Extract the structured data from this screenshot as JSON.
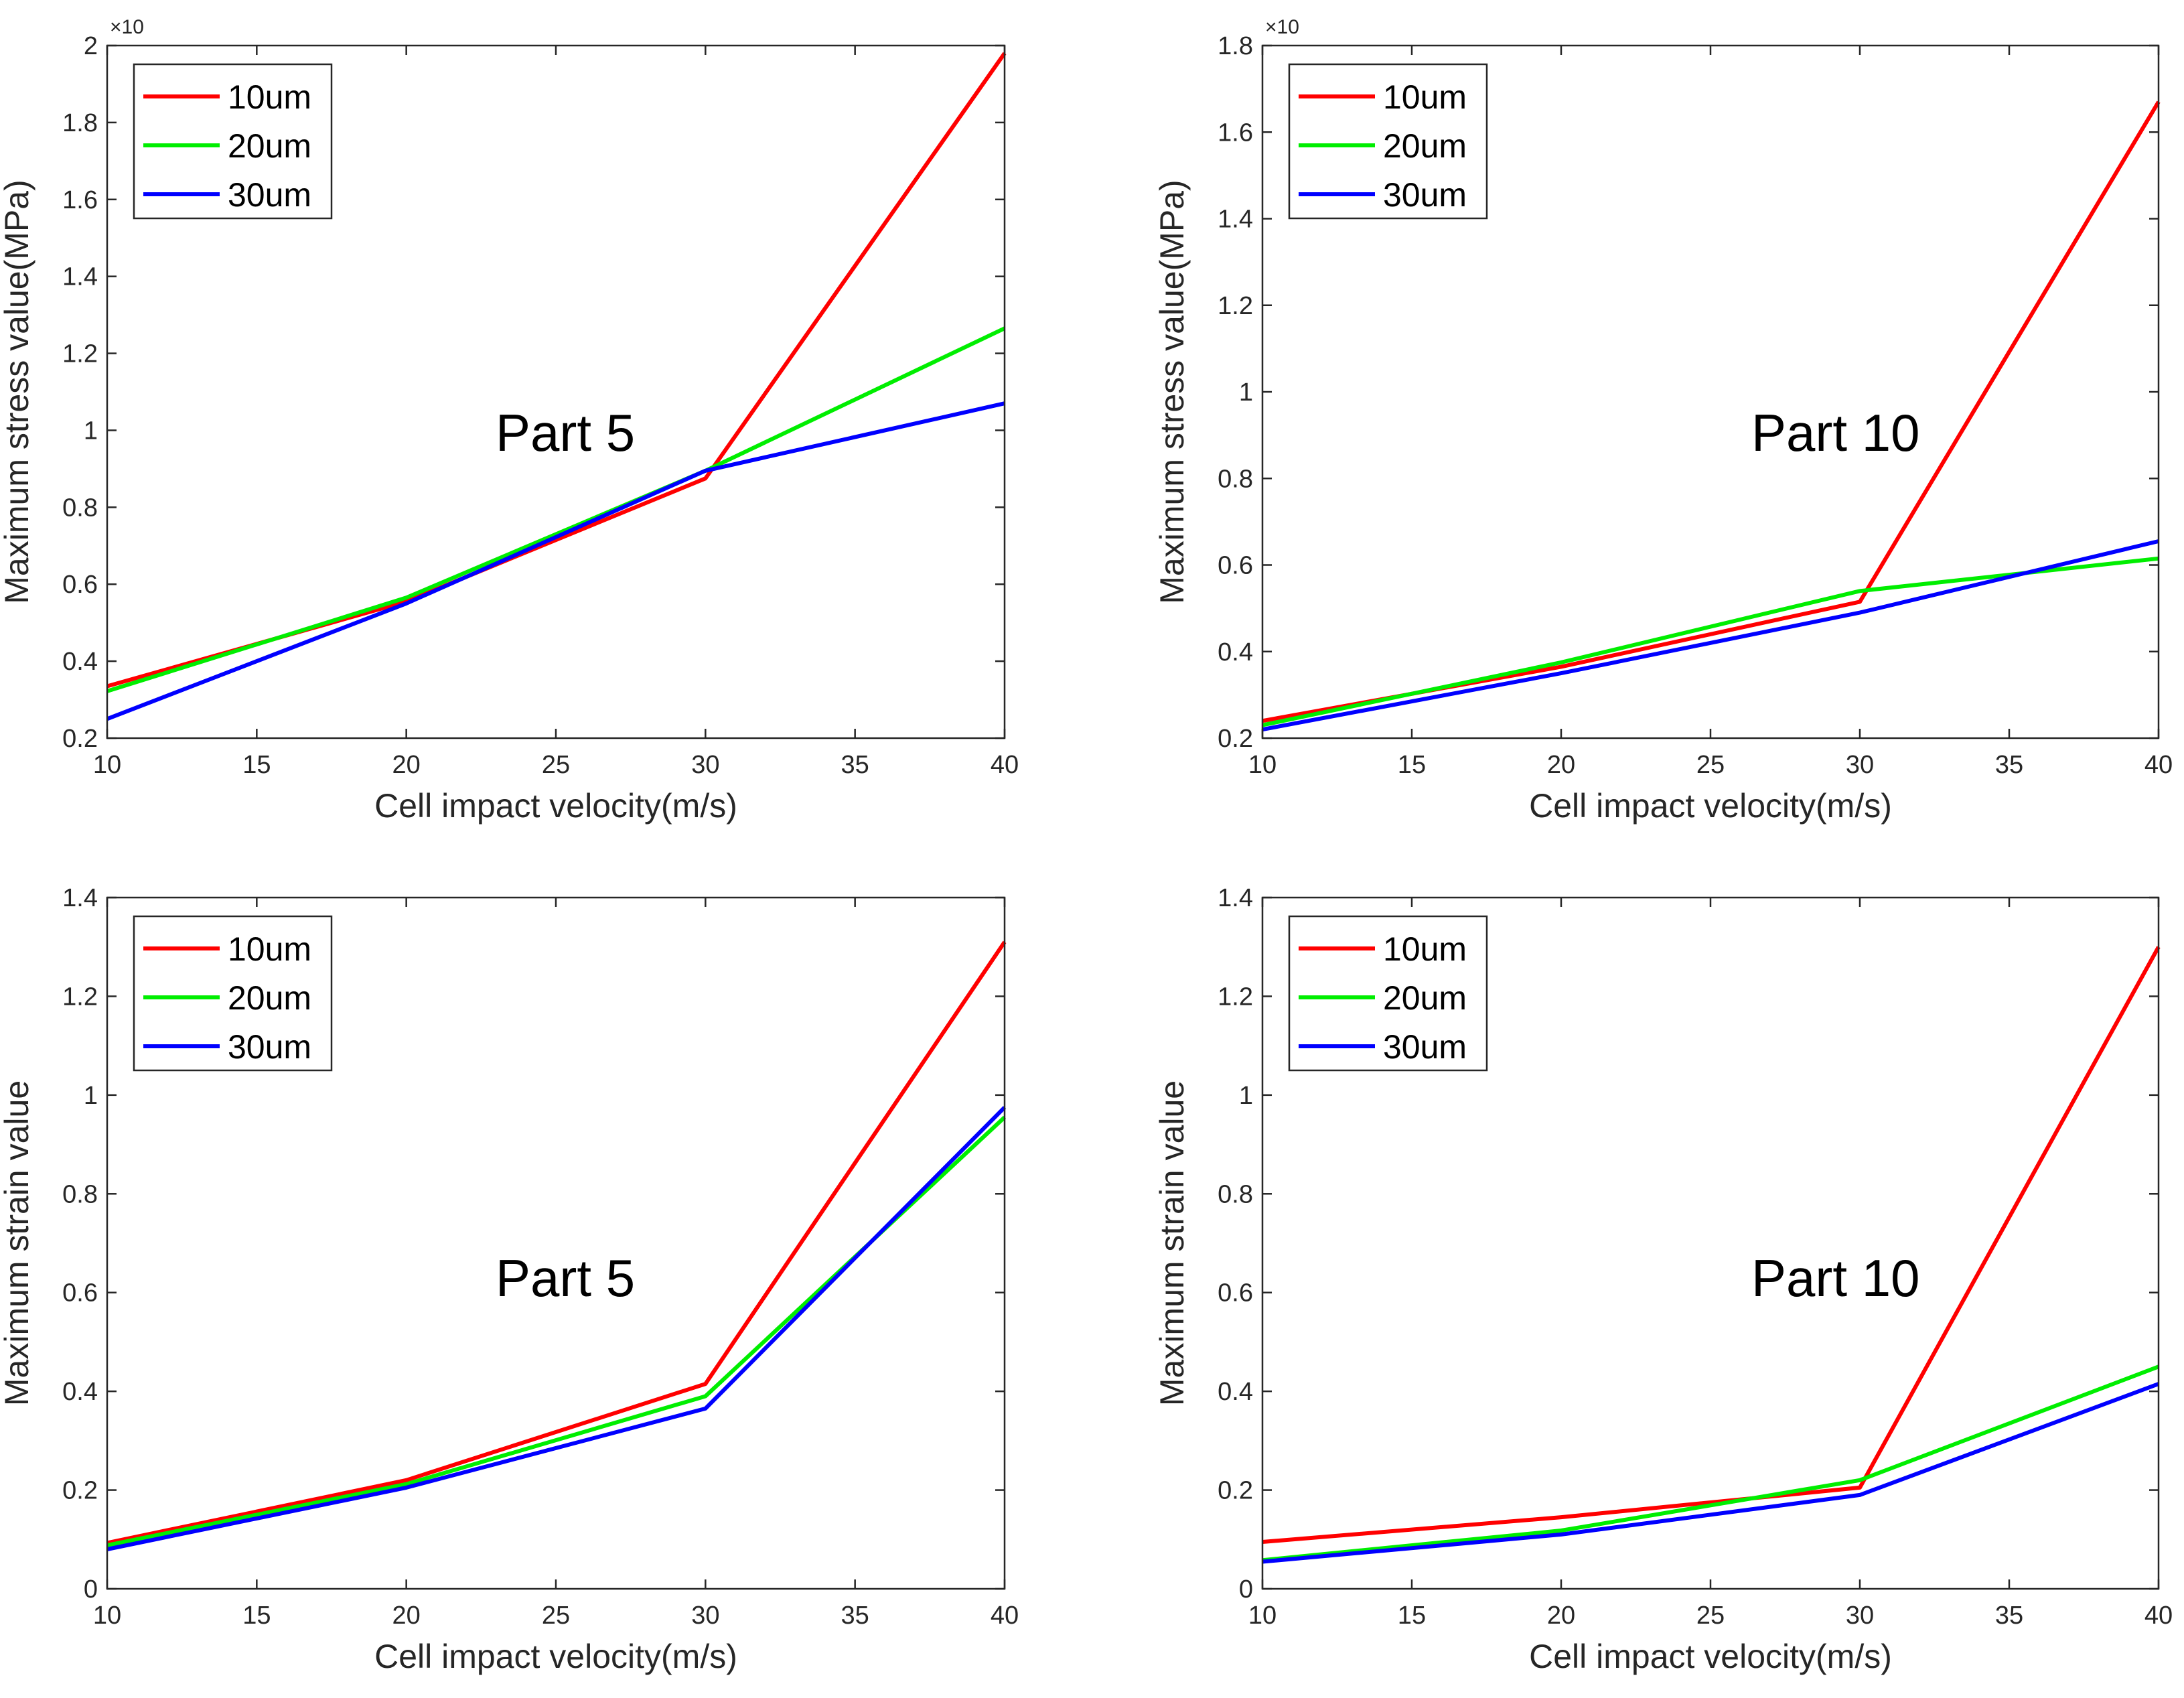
{
  "chart_data": [
    {
      "type": "line",
      "position": "top-left",
      "annotation": "Part 5",
      "xlabel": "Cell impact velocity(m/s)",
      "ylabel": "Maximum stress value(MPa)",
      "exponent_label": "×10",
      "xlim": [
        10,
        40
      ],
      "ylim": [
        0.2,
        2
      ],
      "xticks": [
        10,
        15,
        20,
        25,
        30,
        35,
        40
      ],
      "yticks": [
        0.2,
        0.4,
        0.6,
        0.8,
        1,
        1.2,
        1.4,
        1.6,
        1.8,
        2
      ],
      "ytick_labels": [
        "0.2",
        "0.4",
        "0.6",
        "0.8",
        "1",
        "1.2",
        "1.4",
        "1.6",
        "1.8",
        "2"
      ],
      "legend_location": "top-left",
      "x": [
        10,
        20,
        30,
        40
      ],
      "series": [
        {
          "name": "10um",
          "color": "#ff0000",
          "values": [
            0.335,
            0.555,
            0.875,
            1.98
          ]
        },
        {
          "name": "20um",
          "color": "#00ee00",
          "values": [
            0.322,
            0.565,
            0.895,
            1.265
          ]
        },
        {
          "name": "30um",
          "color": "#0000ff",
          "values": [
            0.25,
            0.55,
            0.895,
            1.07
          ]
        }
      ]
    },
    {
      "type": "line",
      "position": "top-right",
      "annotation": "Part 10",
      "xlabel": "Cell impact velocity(m/s)",
      "ylabel": "Maximum stress value(MPa)",
      "exponent_label": "×10",
      "xlim": [
        10,
        40
      ],
      "ylim": [
        0.2,
        1.8
      ],
      "xticks": [
        10,
        15,
        20,
        25,
        30,
        35,
        40
      ],
      "yticks": [
        0.2,
        0.4,
        0.6,
        0.8,
        1,
        1.2,
        1.4,
        1.6,
        1.8
      ],
      "ytick_labels": [
        "0.2",
        "0.4",
        "0.6",
        "0.8",
        "1",
        "1.2",
        "1.4",
        "1.6",
        "1.8"
      ],
      "legend_location": "top-left",
      "x": [
        10,
        20,
        30,
        40
      ],
      "series": [
        {
          "name": "10um",
          "color": "#ff0000",
          "values": [
            0.24,
            0.365,
            0.515,
            1.67
          ]
        },
        {
          "name": "20um",
          "color": "#00ee00",
          "values": [
            0.23,
            0.375,
            0.54,
            0.615
          ]
        },
        {
          "name": "30um",
          "color": "#0000ff",
          "values": [
            0.22,
            0.35,
            0.49,
            0.655
          ]
        }
      ]
    },
    {
      "type": "line",
      "position": "bottom-left",
      "annotation": "Part 5",
      "xlabel": "Cell impact velocity(m/s)",
      "ylabel": "Maximum strain value",
      "exponent_label": "",
      "xlim": [
        10,
        40
      ],
      "ylim": [
        0,
        1.4
      ],
      "xticks": [
        10,
        15,
        20,
        25,
        30,
        35,
        40
      ],
      "yticks": [
        0,
        0.2,
        0.4,
        0.6,
        0.8,
        1,
        1.2,
        1.4
      ],
      "ytick_labels": [
        "0",
        "0.2",
        "0.4",
        "0.6",
        "0.8",
        "1",
        "1.2",
        "1.4"
      ],
      "legend_location": "top-left",
      "x": [
        10,
        20,
        30,
        40
      ],
      "series": [
        {
          "name": "10um",
          "color": "#ff0000",
          "values": [
            0.093,
            0.22,
            0.415,
            1.31
          ]
        },
        {
          "name": "20um",
          "color": "#00ee00",
          "values": [
            0.088,
            0.212,
            0.39,
            0.955
          ]
        },
        {
          "name": "30um",
          "color": "#0000ff",
          "values": [
            0.08,
            0.205,
            0.365,
            0.975
          ]
        }
      ]
    },
    {
      "type": "line",
      "position": "bottom-right",
      "annotation": "Part 10",
      "xlabel": "Cell impact velocity(m/s)",
      "ylabel": "Maximum strain value",
      "exponent_label": "",
      "xlim": [
        10,
        40
      ],
      "ylim": [
        0,
        1.4
      ],
      "xticks": [
        10,
        15,
        20,
        25,
        30,
        35,
        40
      ],
      "yticks": [
        0,
        0.2,
        0.4,
        0.6,
        0.8,
        1,
        1.2,
        1.4
      ],
      "ytick_labels": [
        "0",
        "0.2",
        "0.4",
        "0.6",
        "0.8",
        "1",
        "1.2",
        "1.4"
      ],
      "legend_location": "top-left",
      "x": [
        10,
        20,
        30,
        40
      ],
      "series": [
        {
          "name": "10um",
          "color": "#ff0000",
          "values": [
            0.095,
            0.145,
            0.205,
            1.3
          ]
        },
        {
          "name": "20um",
          "color": "#00ee00",
          "values": [
            0.058,
            0.118,
            0.22,
            0.45
          ]
        },
        {
          "name": "30um",
          "color": "#0000ff",
          "values": [
            0.055,
            0.11,
            0.19,
            0.415
          ]
        }
      ]
    }
  ]
}
